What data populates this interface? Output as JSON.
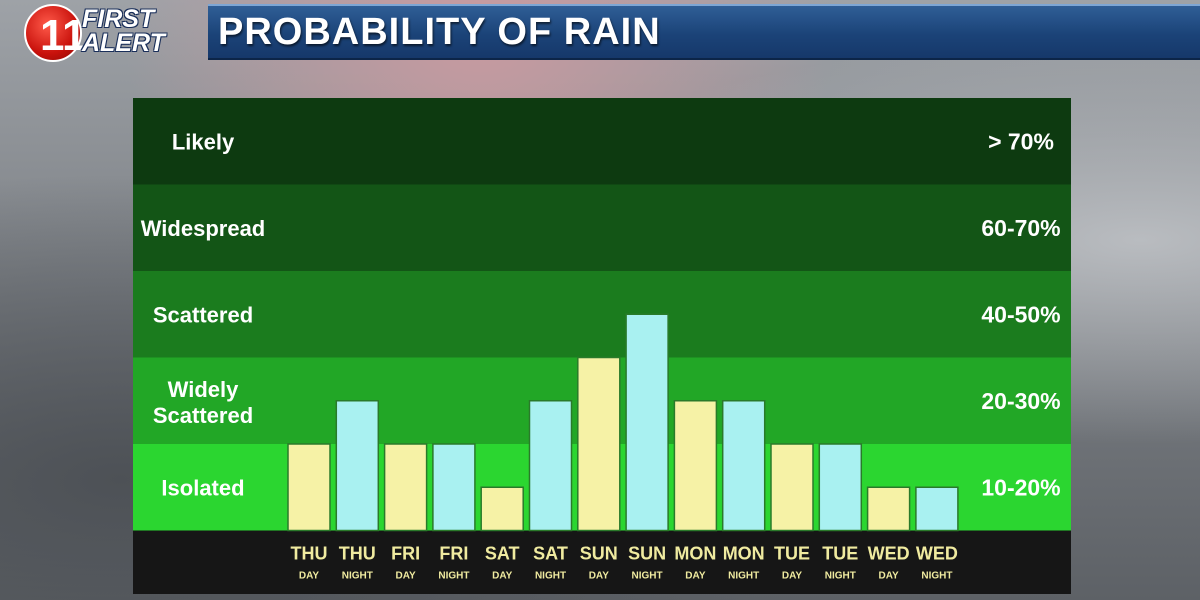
{
  "header": {
    "title": "PROBABILITY OF RAIN",
    "logo_first": "FIRST",
    "logo_alert": "ALERT",
    "logo_number": "11"
  },
  "colors": {
    "day_bar": "#f6f2a6",
    "night_bar": "#a9f1f1",
    "band_likely": "#0d3a10",
    "band_widespread": "#135516",
    "band_scattered": "#1b7c1e",
    "band_widely_scattered": "#22a726",
    "band_isolated": "#2bd630",
    "axis_strip": "#161616",
    "tick_label": "#f0eba0"
  },
  "chart_data": {
    "type": "bar",
    "title": "PROBABILITY OF RAIN",
    "bands": [
      {
        "label": "Likely",
        "range": "> 70%"
      },
      {
        "label": "Widespread",
        "range": "60-70%"
      },
      {
        "label": "Scattered",
        "range": "40-50%"
      },
      {
        "label": "Widely Scattered",
        "range": "20-30%"
      },
      {
        "label": "Isolated",
        "range": "10-20%"
      }
    ],
    "categories": [
      {
        "day": "THU",
        "period": "DAY"
      },
      {
        "day": "THU",
        "period": "NIGHT"
      },
      {
        "day": "FRI",
        "period": "DAY"
      },
      {
        "day": "FRI",
        "period": "NIGHT"
      },
      {
        "day": "SAT",
        "period": "DAY"
      },
      {
        "day": "SAT",
        "period": "NIGHT"
      },
      {
        "day": "SUN",
        "period": "DAY"
      },
      {
        "day": "SUN",
        "period": "NIGHT"
      },
      {
        "day": "MON",
        "period": "DAY"
      },
      {
        "day": "MON",
        "period": "NIGHT"
      },
      {
        "day": "TUE",
        "period": "DAY"
      },
      {
        "day": "TUE",
        "period": "NIGHT"
      },
      {
        "day": "WED",
        "period": "DAY"
      },
      {
        "day": "WED",
        "period": "NIGHT"
      }
    ],
    "values_band_level": [
      1.0,
      1.5,
      1.0,
      1.0,
      0.5,
      1.5,
      2.0,
      2.5,
      1.5,
      1.5,
      1.0,
      1.0,
      0.5,
      0.5
    ],
    "ylim_band_level": [
      0,
      5
    ],
    "grid": false,
    "legend": "none"
  }
}
